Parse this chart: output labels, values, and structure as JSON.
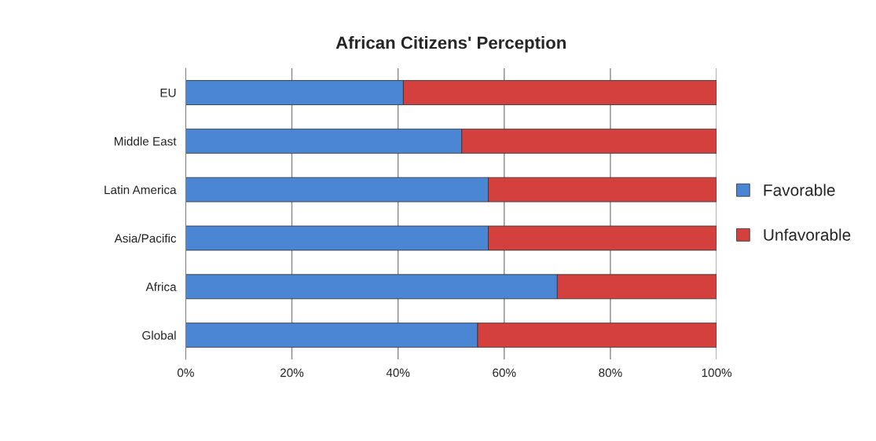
{
  "chart_data": {
    "type": "bar",
    "title": "African Citizens' Perception",
    "orientation": "horizontal",
    "stacked": true,
    "categories": [
      "EU",
      "Middle East",
      "Latin America",
      "Asia/Pacific",
      "Africa",
      "Global"
    ],
    "series": [
      {
        "name": "Favorable",
        "color": "#4a86d4",
        "values": [
          41,
          52,
          57,
          57,
          70,
          55
        ]
      },
      {
        "name": "Unfavorable",
        "color": "#d4403d",
        "values": [
          59,
          48,
          43,
          43,
          30,
          45
        ]
      }
    ],
    "xlim": [
      0,
      100
    ],
    "xticks": [
      {
        "value": 0,
        "label": "0%"
      },
      {
        "value": 20,
        "label": "20%"
      },
      {
        "value": 40,
        "label": "40%"
      },
      {
        "value": 60,
        "label": "60%"
      },
      {
        "value": 80,
        "label": "80%"
      },
      {
        "value": 100,
        "label": "100%"
      }
    ],
    "grid": "x",
    "legend": "right"
  }
}
